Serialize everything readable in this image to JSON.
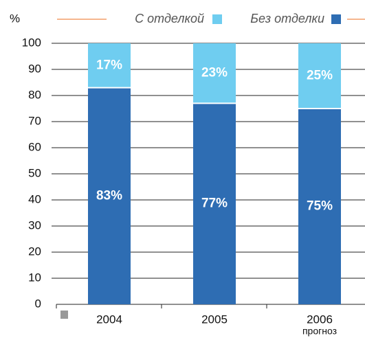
{
  "chart_data": {
    "type": "stacked_bar",
    "y_label": "%",
    "categories": [
      "2004",
      "2005",
      "2006"
    ],
    "forecast_label": "прогноз",
    "series": [
      {
        "name": "Без отделки",
        "color": "#2e6db3",
        "values": [
          83,
          77,
          75
        ],
        "value_labels": [
          "83%",
          "77%",
          "75%"
        ]
      },
      {
        "name": "С отделкой",
        "color": "#6fcdf0",
        "values": [
          17,
          23,
          25
        ],
        "value_labels": [
          "17%",
          "23%",
          "25%"
        ]
      }
    ],
    "ylim": [
      0,
      100
    ],
    "yticks": [
      0,
      10,
      20,
      30,
      40,
      50,
      60,
      70,
      80,
      90,
      100
    ],
    "grid": true,
    "legend": "top",
    "accent_color": "#f08a4b"
  }
}
